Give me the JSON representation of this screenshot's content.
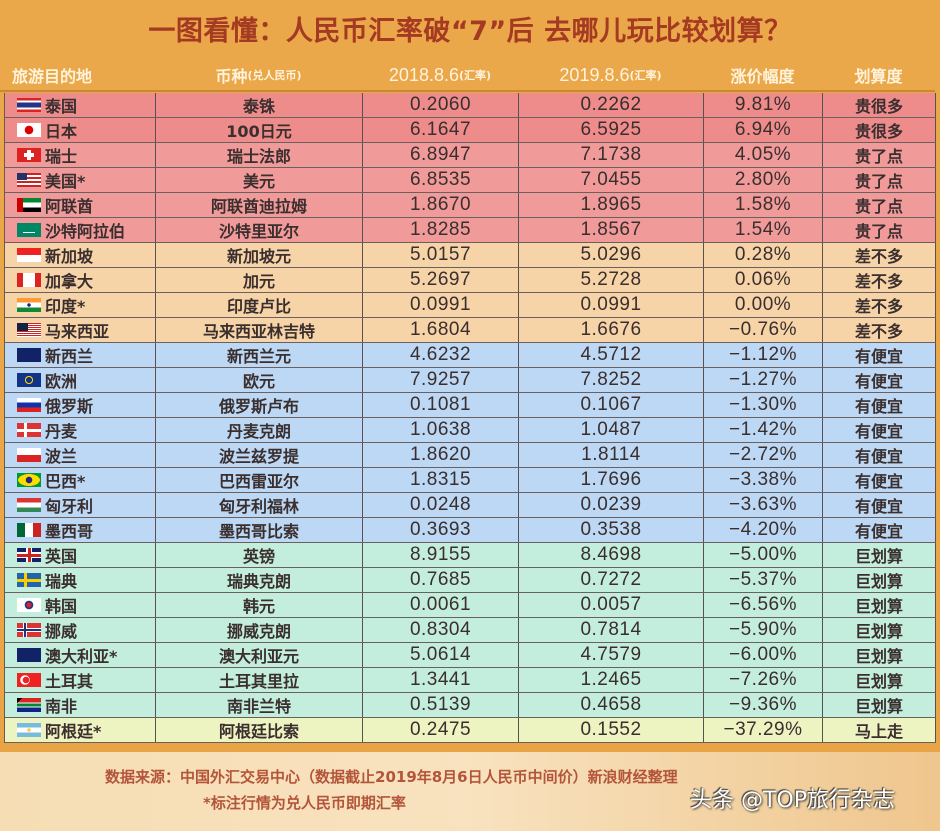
{
  "title": "一图看懂：人民币汇率破“7”后 去哪儿玩比较划算？",
  "header": {
    "destination": "旅游目的地",
    "currency": "币种",
    "currency_sub": "(兑人民币)",
    "rate_2018": "2018.8.6",
    "rate_2018_sub": "(汇率)",
    "rate_2019": "2019.8.6",
    "rate_2019_sub": "(汇率)",
    "change": "涨价幅度",
    "value": "划算度"
  },
  "colors": {
    "title": "#a53a22",
    "header_bg": "#eba84a",
    "group_expensive_very": "#ee8c8c",
    "group_expensive": "#f09a9a",
    "group_similar": "#f6d4a8",
    "group_cheaper": "#bcd8f4",
    "group_bargain": "#c3eedd",
    "group_go_now": "#eef3c2",
    "footer_text": "#b3553a"
  },
  "rows": [
    {
      "dest": "泰国",
      "flag": "thailand",
      "currency": "泰铢",
      "r2018": "0.2060",
      "r2019": "0.2262",
      "change": "9.81%",
      "rating": "贵很多",
      "group": "g-red dark"
    },
    {
      "dest": "日本",
      "flag": "japan",
      "currency": "100日元",
      "r2018": "6.1647",
      "r2019": "6.5925",
      "change": "6.94%",
      "rating": "贵很多",
      "group": "g-red dark"
    },
    {
      "dest": "瑞士",
      "flag": "switzerland",
      "currency": "瑞士法郎",
      "r2018": "6.8947",
      "r2019": "7.1738",
      "change": "4.05%",
      "rating": "贵了点",
      "group": "g-red"
    },
    {
      "dest": "美国*",
      "flag": "usa",
      "currency": "美元",
      "r2018": "6.8535",
      "r2019": "7.0455",
      "change": "2.80%",
      "rating": "贵了点",
      "group": "g-red"
    },
    {
      "dest": "阿联酋",
      "flag": "uae",
      "currency": "阿联酋迪拉姆",
      "r2018": "1.8670",
      "r2019": "1.8965",
      "change": "1.58%",
      "rating": "贵了点",
      "group": "g-red"
    },
    {
      "dest": "沙特阿拉伯",
      "flag": "saudi",
      "currency": "沙特里亚尔",
      "r2018": "1.8285",
      "r2019": "1.8567",
      "change": "1.54%",
      "rating": "贵了点",
      "group": "g-red"
    },
    {
      "dest": "新加坡",
      "flag": "singapore",
      "currency": "新加坡元",
      "r2018": "5.0157",
      "r2019": "5.0296",
      "change": "0.28%",
      "rating": "差不多",
      "group": "g-orange"
    },
    {
      "dest": "加拿大",
      "flag": "canada",
      "currency": "加元",
      "r2018": "5.2697",
      "r2019": "5.2728",
      "change": "0.06%",
      "rating": "差不多",
      "group": "g-orange"
    },
    {
      "dest": "印度*",
      "flag": "india",
      "currency": "印度卢比",
      "r2018": "0.0991",
      "r2019": "0.0991",
      "change": "0.00%",
      "rating": "差不多",
      "group": "g-orange"
    },
    {
      "dest": "马来西亚",
      "flag": "malaysia",
      "currency": "马来西亚林吉特",
      "r2018": "1.6804",
      "r2019": "1.6676",
      "change": "−0.76%",
      "rating": "差不多",
      "group": "g-orange"
    },
    {
      "dest": "新西兰",
      "flag": "newzealand",
      "currency": "新西兰元",
      "r2018": "4.6232",
      "r2019": "4.5712",
      "change": "−1.12%",
      "rating": "有便宜",
      "group": "g-blue"
    },
    {
      "dest": "欧洲",
      "flag": "eu",
      "currency": "欧元",
      "r2018": "7.9257",
      "r2019": "7.8252",
      "change": "−1.27%",
      "rating": "有便宜",
      "group": "g-blue"
    },
    {
      "dest": "俄罗斯",
      "flag": "russia",
      "currency": "俄罗斯卢布",
      "r2018": "0.1081",
      "r2019": "0.1067",
      "change": "−1.30%",
      "rating": "有便宜",
      "group": "g-blue"
    },
    {
      "dest": "丹麦",
      "flag": "denmark",
      "currency": "丹麦克朗",
      "r2018": "1.0638",
      "r2019": "1.0487",
      "change": "−1.42%",
      "rating": "有便宜",
      "group": "g-blue"
    },
    {
      "dest": "波兰",
      "flag": "poland",
      "currency": "波兰兹罗提",
      "r2018": "1.8620",
      "r2019": "1.8114",
      "change": "−2.72%",
      "rating": "有便宜",
      "group": "g-blue"
    },
    {
      "dest": "巴西*",
      "flag": "brazil",
      "currency": "巴西雷亚尔",
      "r2018": "1.8315",
      "r2019": "1.7696",
      "change": "−3.38%",
      "rating": "有便宜",
      "group": "g-blue"
    },
    {
      "dest": "匈牙利",
      "flag": "hungary",
      "currency": "匈牙利福林",
      "r2018": "0.0248",
      "r2019": "0.0239",
      "change": "−3.63%",
      "rating": "有便宜",
      "group": "g-blue"
    },
    {
      "dest": "墨西哥",
      "flag": "mexico",
      "currency": "墨西哥比索",
      "r2018": "0.3693",
      "r2019": "0.3538",
      "change": "−4.20%",
      "rating": "有便宜",
      "group": "g-blue"
    },
    {
      "dest": "英国",
      "flag": "uk",
      "currency": "英镑",
      "r2018": "8.9155",
      "r2019": "8.4698",
      "change": "−5.00%",
      "rating": "巨划算",
      "group": "g-green"
    },
    {
      "dest": "瑞典",
      "flag": "sweden",
      "currency": "瑞典克朗",
      "r2018": "0.7685",
      "r2019": "0.7272",
      "change": "−5.37%",
      "rating": "巨划算",
      "group": "g-green"
    },
    {
      "dest": "韩国",
      "flag": "korea",
      "currency": "韩元",
      "r2018": "0.0061",
      "r2019": "0.0057",
      "change": "−6.56%",
      "rating": "巨划算",
      "group": "g-green"
    },
    {
      "dest": "挪威",
      "flag": "norway",
      "currency": "挪威克朗",
      "r2018": "0.8304",
      "r2019": "0.7814",
      "change": "−5.90%",
      "rating": "巨划算",
      "group": "g-green"
    },
    {
      "dest": "澳大利亚*",
      "flag": "australia",
      "currency": "澳大利亚元",
      "r2018": "5.0614",
      "r2019": "4.7579",
      "change": "−6.00%",
      "rating": "巨划算",
      "group": "g-green"
    },
    {
      "dest": "土耳其",
      "flag": "turkey",
      "currency": "土耳其里拉",
      "r2018": "1.3441",
      "r2019": "1.2465",
      "change": "−7.26%",
      "rating": "巨划算",
      "group": "g-green"
    },
    {
      "dest": "南非",
      "flag": "southafrica",
      "currency": "南非兰特",
      "r2018": "0.5139",
      "r2019": "0.4658",
      "change": "−9.36%",
      "rating": "巨划算",
      "group": "g-green"
    },
    {
      "dest": "阿根廷*",
      "flag": "argentina",
      "currency": "阿根廷比索",
      "r2018": "0.2475",
      "r2019": "0.1552",
      "change": "−37.29%",
      "rating": "马上走",
      "group": "g-yellow"
    }
  ],
  "footer": {
    "source": "数据来源：中国外汇交易中心（数据截止2019年8月6日人民币中间价）新浪财经整理",
    "note": "*标注行情为兑人民币即期汇率",
    "watermark": "头条 @TOP旅行杂志"
  },
  "chart_data": {
    "type": "table",
    "title": "一图看懂：人民币汇率破“7”后 去哪儿玩比较划算？",
    "columns": [
      "旅游目的地",
      "币种(兑人民币)",
      "2018.8.6(汇率)",
      "2019.8.6(汇率)",
      "涨价幅度",
      "划算度"
    ],
    "rows": [
      [
        "泰国",
        "泰铢",
        0.206,
        0.2262,
        "9.81%",
        "贵很多"
      ],
      [
        "日本",
        "100日元",
        6.1647,
        6.5925,
        "6.94%",
        "贵很多"
      ],
      [
        "瑞士",
        "瑞士法郎",
        6.8947,
        7.1738,
        "4.05%",
        "贵了点"
      ],
      [
        "美国*",
        "美元",
        6.8535,
        7.0455,
        "2.80%",
        "贵了点"
      ],
      [
        "阿联酋",
        "阿联酋迪拉姆",
        1.867,
        1.8965,
        "1.58%",
        "贵了点"
      ],
      [
        "沙特阿拉伯",
        "沙特里亚尔",
        1.8285,
        1.8567,
        "1.54%",
        "贵了点"
      ],
      [
        "新加坡",
        "新加坡元",
        5.0157,
        5.0296,
        "0.28%",
        "差不多"
      ],
      [
        "加拿大",
        "加元",
        5.2697,
        5.2728,
        "0.06%",
        "差不多"
      ],
      [
        "印度*",
        "印度卢比",
        0.0991,
        0.0991,
        "0.00%",
        "差不多"
      ],
      [
        "马来西亚",
        "马来西亚林吉特",
        1.6804,
        1.6676,
        "-0.76%",
        "差不多"
      ],
      [
        "新西兰",
        "新西兰元",
        4.6232,
        4.5712,
        "-1.12%",
        "有便宜"
      ],
      [
        "欧洲",
        "欧元",
        7.9257,
        7.8252,
        "-1.27%",
        "有便宜"
      ],
      [
        "俄罗斯",
        "俄罗斯卢布",
        0.1081,
        0.1067,
        "-1.30%",
        "有便宜"
      ],
      [
        "丹麦",
        "丹麦克朗",
        1.0638,
        1.0487,
        "-1.42%",
        "有便宜"
      ],
      [
        "波兰",
        "波兰兹罗提",
        1.862,
        1.8114,
        "-2.72%",
        "有便宜"
      ],
      [
        "巴西*",
        "巴西雷亚尔",
        1.8315,
        1.7696,
        "-3.38%",
        "有便宜"
      ],
      [
        "匈牙利",
        "匈牙利福林",
        0.0248,
        0.0239,
        "-3.63%",
        "有便宜"
      ],
      [
        "墨西哥",
        "墨西哥比索",
        0.3693,
        0.3538,
        "-4.20%",
        "有便宜"
      ],
      [
        "英国",
        "英镑",
        8.9155,
        8.4698,
        "-5.00%",
        "巨划算"
      ],
      [
        "瑞典",
        "瑞典克朗",
        0.7685,
        0.7272,
        "-5.37%",
        "巨划算"
      ],
      [
        "韩国",
        "韩元",
        0.0061,
        0.0057,
        "-6.56%",
        "巨划算"
      ],
      [
        "挪威",
        "挪威克朗",
        0.8304,
        0.7814,
        "-5.90%",
        "巨划算"
      ],
      [
        "澳大利亚*",
        "澳大利亚元",
        5.0614,
        4.7579,
        "-6.00%",
        "巨划算"
      ],
      [
        "土耳其",
        "土耳其里拉",
        1.3441,
        1.2465,
        "-7.26%",
        "巨划算"
      ],
      [
        "南非",
        "南非兰特",
        0.5139,
        0.4658,
        "-9.36%",
        "巨划算"
      ],
      [
        "阿根廷*",
        "阿根廷比索",
        0.2475,
        0.1552,
        "-37.29%",
        "马上走"
      ]
    ],
    "notes": [
      "数据来源：中国外汇交易中心（数据截止2019年8月6日人民币中间价）新浪财经整理",
      "*标注行情为兑人民币即期汇率"
    ]
  }
}
